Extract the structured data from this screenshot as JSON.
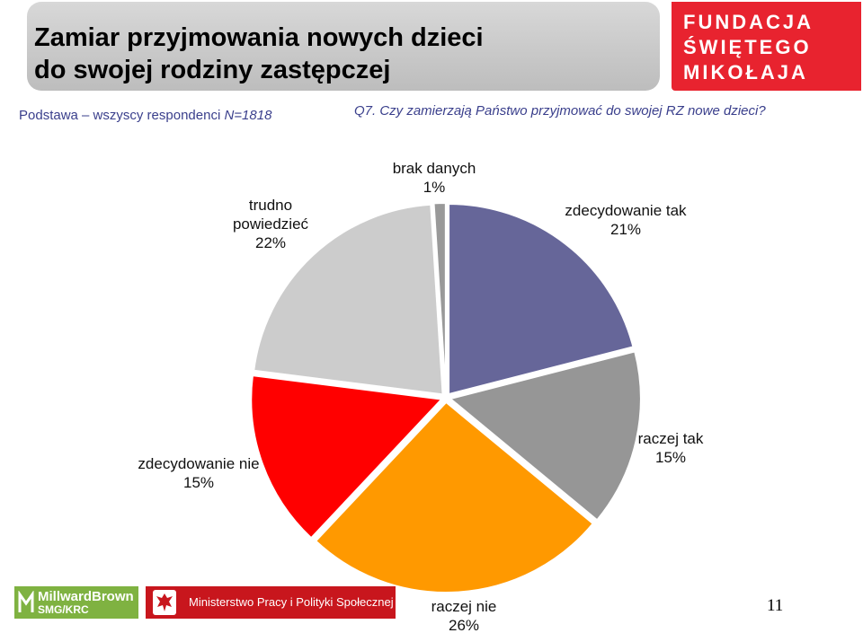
{
  "header": {
    "title_line1": "Zamiar przyjmowania nowych dzieci",
    "title_line2": "do swojej rodziny zastępczej",
    "brand_line1": "FUNDACJA",
    "brand_line2": "ŚWIĘTEGO",
    "brand_line3": "MIKOŁAJA"
  },
  "basis": {
    "label": "Podstawa – wszyscy respondenci",
    "n": "N=1818"
  },
  "question": "Q7. Czy zamierzają Państwo przyjmować do swojej RZ nowe dzieci?",
  "chart_data": {
    "type": "pie",
    "slices": [
      {
        "label": "zdecydowanie tak",
        "value": 21,
        "value_label": "21%",
        "color": "#666699"
      },
      {
        "label": "raczej tak",
        "value": 15,
        "value_label": "15%",
        "color": "#969696"
      },
      {
        "label": "raczej nie",
        "value": 26,
        "value_label": "26%",
        "color": "#ff9900"
      },
      {
        "label": "zdecydowanie nie",
        "value": 15,
        "value_label": "15%",
        "color": "#ff0000"
      },
      {
        "label": "trudno powiedzieć",
        "value": 22,
        "value_label": "22%",
        "color": "#cccccc"
      },
      {
        "label": "brak danych",
        "value": 1,
        "value_label": "1%",
        "color": "#999999"
      }
    ]
  },
  "footer": {
    "mb_name": "MillwardBrown",
    "mb_sub": "SMG/KRC",
    "ministry": "Ministerstwo Pracy i Polityki Społecznej",
    "page_number": "11"
  },
  "colors": {
    "brand_red": "#e8232f",
    "question_blue": "#3a3f8c",
    "mb_green": "#7fb241",
    "ministry_red": "#c8161d"
  }
}
